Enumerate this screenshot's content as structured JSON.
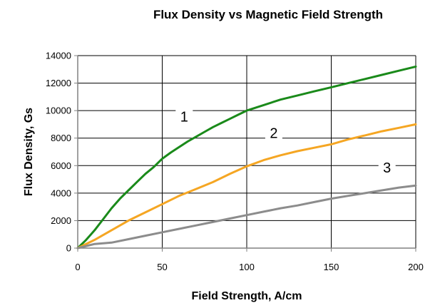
{
  "chart_data": {
    "type": "line",
    "title": "Flux Density vs Magnetic Field Strength",
    "xlabel": "Field Strength, A/cm",
    "ylabel": "Flux Density, Gs",
    "xlim": [
      0,
      200
    ],
    "ylim": [
      0,
      14000
    ],
    "xticks": [
      "0",
      "50",
      "100",
      "150",
      "200"
    ],
    "yticks": [
      "0",
      "2000",
      "4000",
      "6000",
      "8000",
      "10000",
      "12000",
      "14000"
    ],
    "grid": true,
    "series": [
      {
        "name": "1",
        "color": "#1a8a1a",
        "x": [
          0,
          5,
          10,
          15,
          20,
          25,
          30,
          35,
          40,
          45,
          50,
          55,
          60,
          65,
          70,
          75,
          80,
          85,
          90,
          95,
          100,
          110,
          120,
          130,
          140,
          150,
          160,
          170,
          180,
          190,
          200
        ],
        "y": [
          0,
          600,
          1300,
          2100,
          2900,
          3600,
          4200,
          4800,
          5400,
          5900,
          6500,
          6950,
          7350,
          7750,
          8100,
          8450,
          8800,
          9100,
          9400,
          9700,
          10000,
          10400,
          10800,
          11100,
          11400,
          11700,
          12000,
          12300,
          12600,
          12900,
          13200
        ]
      },
      {
        "name": "2",
        "color": "#f5a623",
        "x": [
          0,
          10,
          20,
          30,
          40,
          50,
          60,
          70,
          80,
          90,
          100,
          110,
          120,
          130,
          140,
          150,
          160,
          170,
          180,
          190,
          200
        ],
        "y": [
          0,
          600,
          1300,
          2000,
          2600,
          3200,
          3800,
          4300,
          4800,
          5400,
          5950,
          6400,
          6750,
          7050,
          7300,
          7550,
          7900,
          8200,
          8500,
          8750,
          9000
        ]
      },
      {
        "name": "3",
        "color": "#8c8c8c",
        "x": [
          0,
          10,
          20,
          30,
          40,
          50,
          60,
          70,
          80,
          90,
          100,
          110,
          120,
          130,
          140,
          150,
          160,
          170,
          180,
          190,
          200
        ],
        "y": [
          0,
          300,
          400,
          650,
          900,
          1150,
          1400,
          1650,
          1900,
          2150,
          2400,
          2650,
          2900,
          3100,
          3350,
          3600,
          3800,
          4000,
          4200,
          4400,
          4550
        ]
      }
    ],
    "annotations": [
      {
        "text": "1",
        "x": 63,
        "y": 9200
      },
      {
        "text": "2",
        "x": 116,
        "y": 8000
      },
      {
        "text": "3",
        "x": 183,
        "y": 5500
      }
    ]
  }
}
